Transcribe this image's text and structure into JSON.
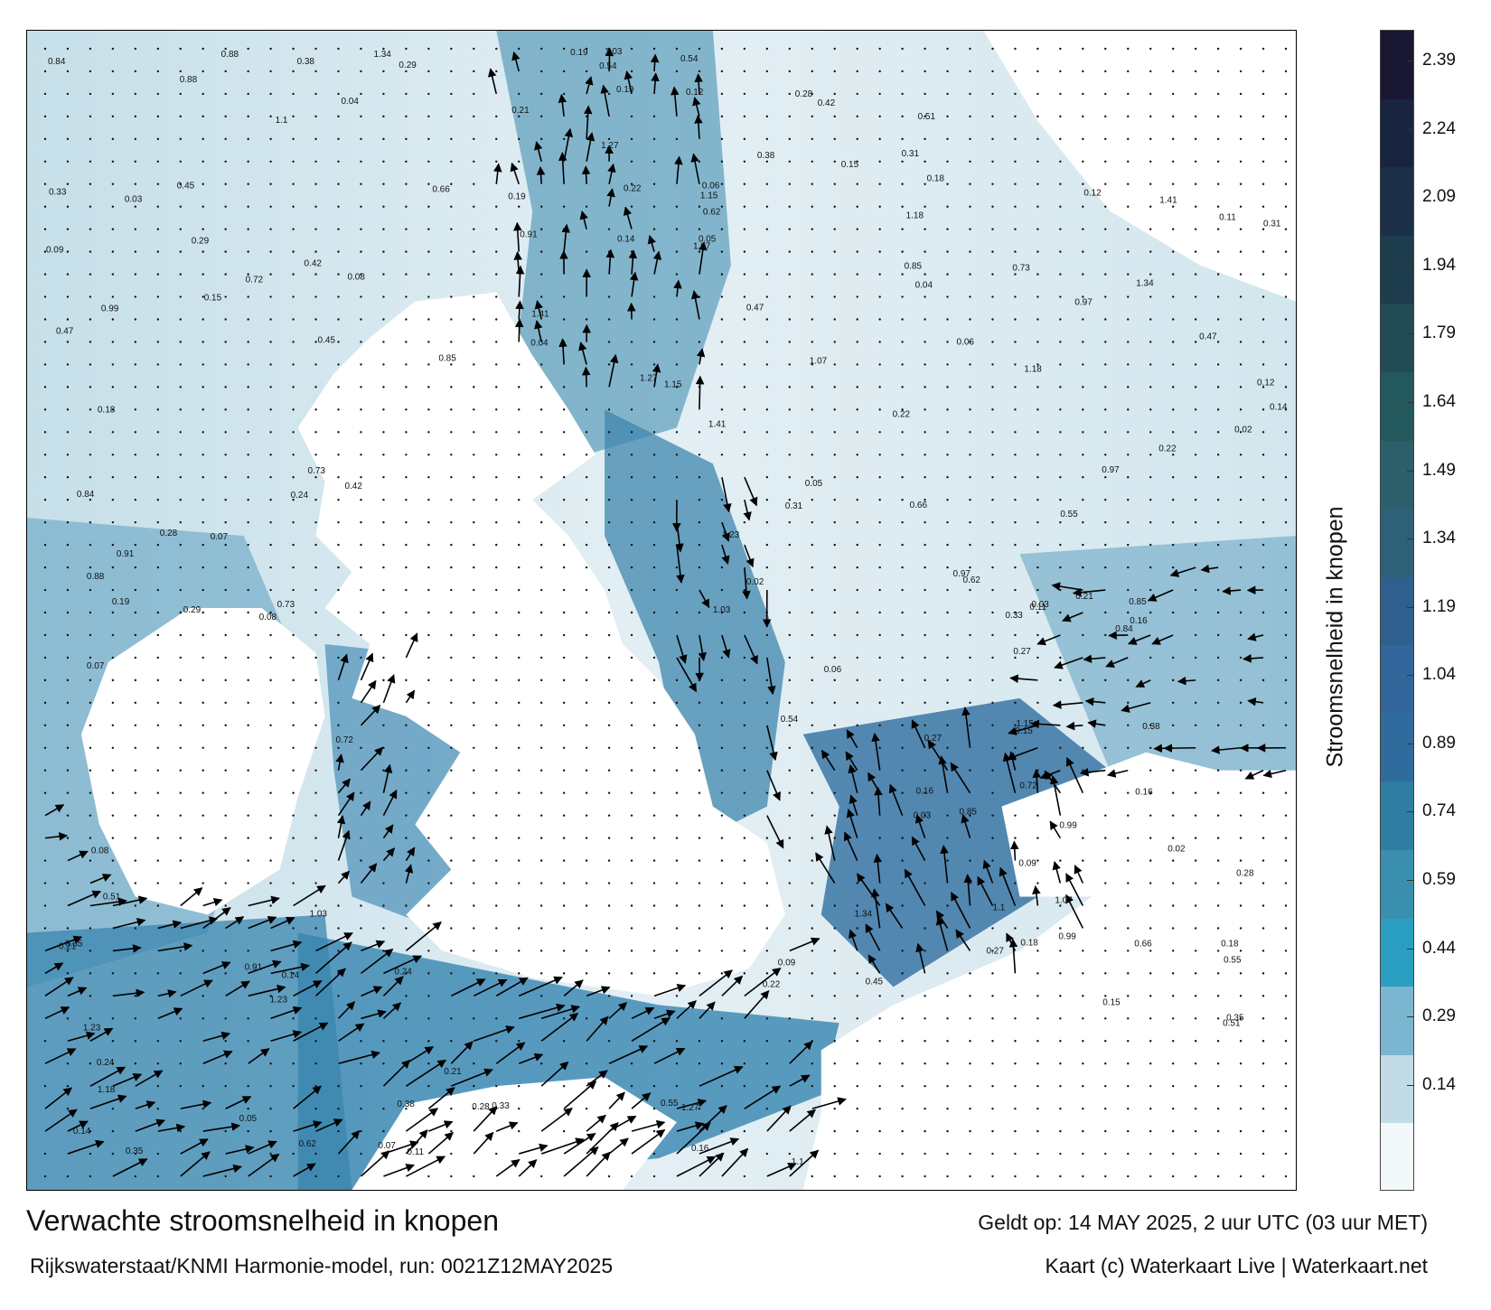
{
  "title": "Verwachte stroomsnelheid in knopen",
  "subtitle": "Rijkswaterstaat/KNMI Harmonie-model, run: 0021Z12MAY2025",
  "valid_time": "Geldt op: 14 MAY 2025, 2 uur UTC (03 uur MET)",
  "credit": "Kaart (c) Waterkaart Live | Waterkaart.net",
  "legend": {
    "title": "Stroomsnelheid in knopen",
    "ticks": [
      "2.39",
      "2.24",
      "2.09",
      "1.94",
      "1.79",
      "1.64",
      "1.49",
      "1.34",
      "1.19",
      "1.04",
      "0.89",
      "0.74",
      "0.59",
      "0.44",
      "0.29",
      "0.14"
    ],
    "colors": [
      "#1a1733",
      "#192440",
      "#1b3048",
      "#1d3c4c",
      "#214b55",
      "#23595c",
      "#2c5f6a",
      "#2e6177",
      "#2f5f8c",
      "#33669a",
      "#2f6b9c",
      "#2f7ea2",
      "#3b8fae",
      "#2b9fc2",
      "#7ab6cf",
      "#c2dbe6",
      "#f3f8fa"
    ]
  },
  "map": {
    "land_color": "#ffffff",
    "arrow_color": "#000000",
    "sample_labels": [
      {
        "text": "0.15"
      },
      {
        "text": "0.28"
      },
      {
        "text": "0.38"
      },
      {
        "text": "0.85"
      },
      {
        "text": "0.19"
      },
      {
        "text": "0.14"
      },
      {
        "text": "0.18"
      },
      {
        "text": "0.22"
      },
      {
        "text": "0.21"
      },
      {
        "text": "0.16"
      },
      {
        "text": "0.08"
      },
      {
        "text": "0.04"
      },
      {
        "text": "0.07"
      },
      {
        "text": "0.05"
      },
      {
        "text": "0.12"
      },
      {
        "text": "0.24"
      },
      {
        "text": "0.31"
      },
      {
        "text": "0.35"
      },
      {
        "text": "0.47"
      },
      {
        "text": "0.66"
      },
      {
        "text": "0.91"
      },
      {
        "text": "1.23"
      },
      {
        "text": "1.18"
      },
      {
        "text": "0.88"
      },
      {
        "text": "0.54"
      },
      {
        "text": "0.73"
      },
      {
        "text": "0.45"
      },
      {
        "text": "0.51"
      },
      {
        "text": "0.29"
      },
      {
        "text": "0.11"
      },
      {
        "text": "0.03"
      },
      {
        "text": "0.02"
      },
      {
        "text": "0.06"
      },
      {
        "text": "0.09"
      },
      {
        "text": "0.27"
      },
      {
        "text": "0.99"
      },
      {
        "text": "1.1"
      },
      {
        "text": "1.07"
      },
      {
        "text": "0.84"
      },
      {
        "text": "0.62"
      },
      {
        "text": "0.97"
      },
      {
        "text": "1.03"
      },
      {
        "text": "1.15"
      },
      {
        "text": "1.34"
      },
      {
        "text": "1.41"
      },
      {
        "text": "1.27"
      },
      {
        "text": "0.72"
      },
      {
        "text": "0.55"
      },
      {
        "text": "0.42"
      },
      {
        "text": "0.33"
      }
    ]
  }
}
